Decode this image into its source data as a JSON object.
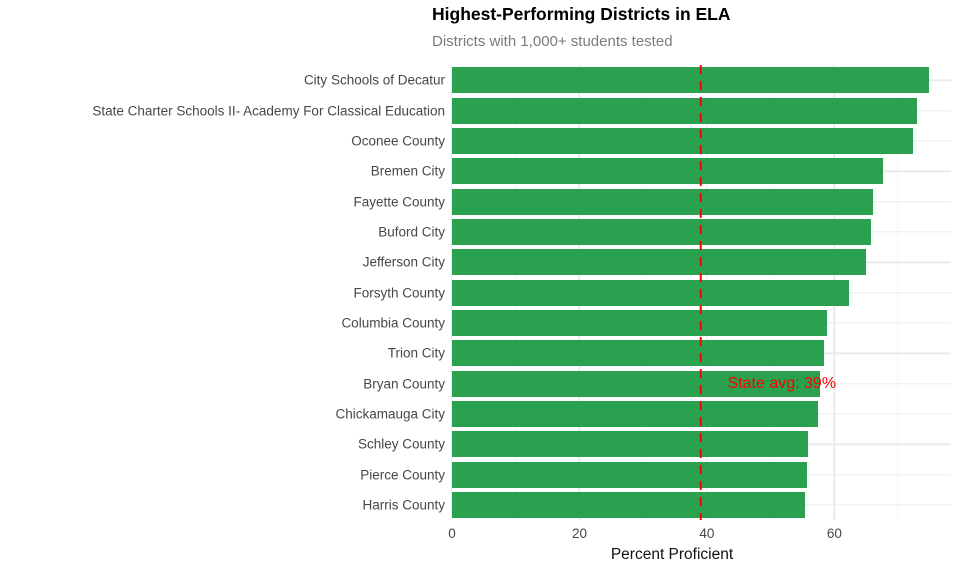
{
  "chart_data": {
    "type": "bar",
    "orientation": "horizontal",
    "title": "Highest-Performing Districts in ELA",
    "subtitle": "Districts with 1,000+ students tested",
    "xlabel": "Percent Proficient",
    "categories": [
      "City Schools of Decatur",
      "State Charter Schools II- Academy For Classical Education",
      "Oconee County",
      "Bremen City",
      "Fayette County",
      "Buford City",
      "Jefferson City",
      "Forsyth County",
      "Columbia County",
      "Trion City",
      "Bryan County",
      "Chickamauga City",
      "Schley County",
      "Pierce County",
      "Harris County"
    ],
    "values": [
      74.8,
      73.0,
      72.3,
      67.6,
      66.1,
      65.8,
      65.0,
      62.3,
      58.9,
      58.4,
      57.7,
      57.4,
      55.8,
      55.7,
      55.4
    ],
    "xlim": [
      0,
      78.3
    ],
    "xticks": [
      0,
      20,
      40,
      60
    ],
    "xticks_minor": [
      10,
      30,
      50,
      70
    ],
    "grid": true,
    "legend": "none",
    "reference_line": {
      "value": 39,
      "style": "dashed",
      "label": "State avg: 39%"
    }
  },
  "colors": {
    "background": "#ffffff",
    "bar": "#2aa14f",
    "grid_major": "#ebebeb",
    "grid_minor": "#f4f4f4",
    "reference": "#ff0000",
    "annotation_text": "#ff0000",
    "title": "#000000",
    "subtitle": "#7b7b7b",
    "axis_text": "#474747"
  }
}
